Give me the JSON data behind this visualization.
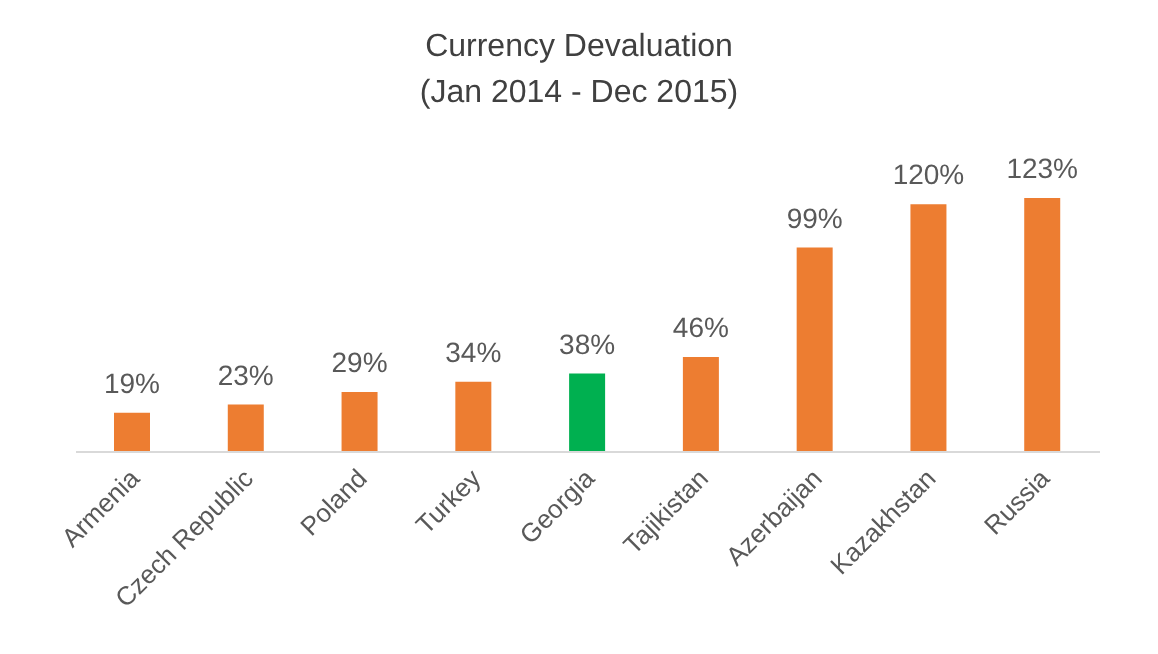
{
  "chart_data": {
    "type": "bar",
    "title": "Currency Devaluation",
    "subtitle": "(Jan 2014 - Dec 2015)",
    "categories": [
      "Armenia",
      "Czech Republic",
      "Poland",
      "Turkey",
      "Georgia",
      "Tajikistan",
      "Azerbaijan",
      "Kazakhstan",
      "Russia"
    ],
    "values": [
      19,
      23,
      29,
      34,
      38,
      46,
      99,
      120,
      123
    ],
    "value_labels": [
      "19%",
      "23%",
      "29%",
      "34%",
      "38%",
      "46%",
      "99%",
      "120%",
      "123%"
    ],
    "colors": [
      "#ed7d31",
      "#ed7d31",
      "#ed7d31",
      "#ed7d31",
      "#00b050",
      "#ed7d31",
      "#ed7d31",
      "#ed7d31",
      "#ed7d31"
    ],
    "grid": false,
    "legend": false
  }
}
